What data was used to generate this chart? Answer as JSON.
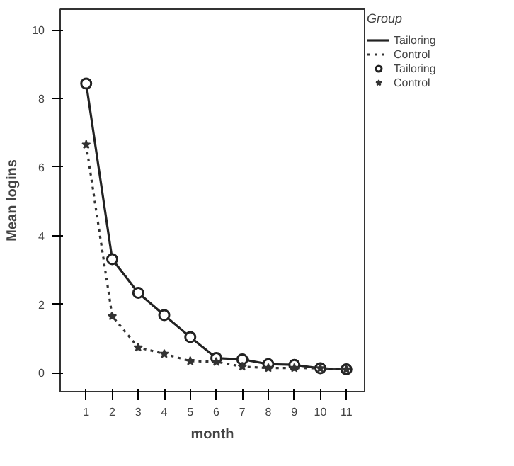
{
  "chart_data": {
    "type": "line",
    "xlabel": "month",
    "ylabel": "Mean logins",
    "legend_title": "Group",
    "legend": "right",
    "grid": false,
    "x": [
      1,
      2,
      3,
      4,
      5,
      6,
      7,
      8,
      9,
      10,
      11
    ],
    "xlim": [
      0,
      11.7
    ],
    "xticks": [
      1,
      2,
      3,
      4,
      5,
      6,
      7,
      8,
      9,
      10,
      11
    ],
    "ylim": [
      -0.55,
      10.6
    ],
    "yticks": [
      0,
      2,
      4,
      6,
      8,
      10
    ],
    "series": [
      {
        "name": "Tailoring",
        "color": "#222222",
        "line_style": "solid",
        "marker": "circle",
        "values": [
          8.43,
          3.31,
          2.33,
          1.68,
          1.04,
          0.43,
          0.39,
          0.25,
          0.23,
          0.13,
          0.1
        ]
      },
      {
        "name": "Control",
        "color": "#333333",
        "line_style": "dotted",
        "marker": "star",
        "values": [
          6.65,
          1.65,
          0.74,
          0.55,
          0.34,
          0.32,
          0.18,
          0.14,
          0.14,
          0.13,
          0.1
        ]
      }
    ]
  }
}
